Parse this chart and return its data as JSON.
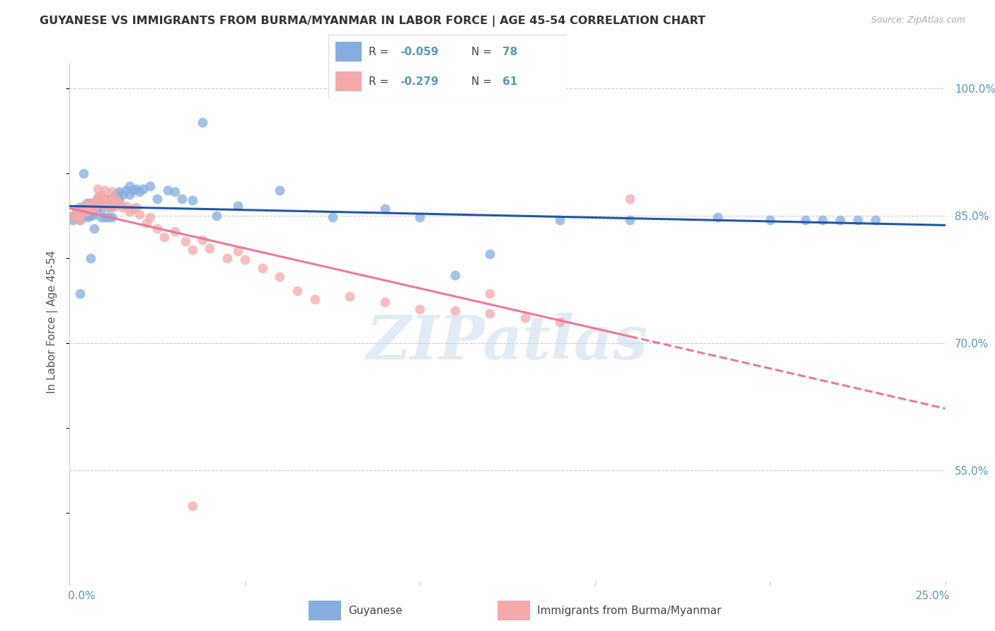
{
  "title": "GUYANESE VS IMMIGRANTS FROM BURMA/MYANMAR IN LABOR FORCE | AGE 45-54 CORRELATION CHART",
  "source": "Source: ZipAtlas.com",
  "ylabel": "In Labor Force | Age 45-54",
  "xaxis_label_left": "0.0%",
  "xaxis_label_right": "25.0%",
  "yaxis_ticks_vals": [
    1.0,
    0.85,
    0.7,
    0.55
  ],
  "yaxis_ticks_labels": [
    "100.0%",
    "85.0%",
    "70.0%",
    "55.0%"
  ],
  "xlim": [
    0.0,
    0.25
  ],
  "ylim": [
    0.42,
    1.03
  ],
  "legend_R_N": [
    {
      "R": "-0.059",
      "N": "78"
    },
    {
      "R": "-0.279",
      "N": "61"
    }
  ],
  "blue_color": "#85AEDE",
  "pink_color": "#F4AAAA",
  "trend_blue": "#2255AA",
  "trend_pink": "#EE7799",
  "title_color": "#333333",
  "axis_label_color": "#5599BB",
  "source_color": "#AAAAAA",
  "grid_color": "#CCCCCC",
  "watermark_color": "#C5D8EE",
  "blue_scatter_x": [
    0.001,
    0.001,
    0.002,
    0.002,
    0.002,
    0.003,
    0.003,
    0.003,
    0.003,
    0.004,
    0.004,
    0.004,
    0.005,
    0.005,
    0.005,
    0.005,
    0.006,
    0.006,
    0.006,
    0.006,
    0.007,
    0.007,
    0.007,
    0.008,
    0.008,
    0.008,
    0.009,
    0.009,
    0.01,
    0.01,
    0.011,
    0.011,
    0.012,
    0.012,
    0.013,
    0.013,
    0.014,
    0.014,
    0.015,
    0.016,
    0.017,
    0.017,
    0.018,
    0.019,
    0.02,
    0.021,
    0.023,
    0.025,
    0.028,
    0.03,
    0.032,
    0.035,
    0.038,
    0.042,
    0.048,
    0.06,
    0.075,
    0.09,
    0.1,
    0.11,
    0.12,
    0.14,
    0.16,
    0.185,
    0.2,
    0.21,
    0.215,
    0.22,
    0.225,
    0.23,
    0.003,
    0.004,
    0.006,
    0.007,
    0.009,
    0.01,
    0.011,
    0.012
  ],
  "blue_scatter_y": [
    0.845,
    0.85,
    0.848,
    0.852,
    0.855,
    0.845,
    0.85,
    0.855,
    0.86,
    0.85,
    0.855,
    0.858,
    0.848,
    0.852,
    0.86,
    0.865,
    0.85,
    0.855,
    0.86,
    0.865,
    0.852,
    0.858,
    0.862,
    0.86,
    0.865,
    0.87,
    0.858,
    0.862,
    0.862,
    0.87,
    0.86,
    0.865,
    0.862,
    0.87,
    0.865,
    0.875,
    0.868,
    0.878,
    0.875,
    0.88,
    0.875,
    0.885,
    0.88,
    0.882,
    0.878,
    0.882,
    0.885,
    0.87,
    0.88,
    0.878,
    0.87,
    0.868,
    0.96,
    0.85,
    0.862,
    0.88,
    0.848,
    0.858,
    0.848,
    0.78,
    0.805,
    0.845,
    0.845,
    0.848,
    0.845,
    0.845,
    0.845,
    0.845,
    0.845,
    0.845,
    0.758,
    0.9,
    0.8,
    0.835,
    0.848,
    0.848,
    0.848,
    0.848
  ],
  "pink_scatter_x": [
    0.001,
    0.002,
    0.002,
    0.003,
    0.003,
    0.004,
    0.004,
    0.005,
    0.005,
    0.006,
    0.006,
    0.007,
    0.007,
    0.008,
    0.008,
    0.009,
    0.009,
    0.01,
    0.01,
    0.011,
    0.011,
    0.012,
    0.012,
    0.013,
    0.013,
    0.014,
    0.015,
    0.016,
    0.017,
    0.018,
    0.019,
    0.02,
    0.022,
    0.023,
    0.025,
    0.027,
    0.03,
    0.033,
    0.035,
    0.038,
    0.04,
    0.045,
    0.048,
    0.05,
    0.055,
    0.06,
    0.065,
    0.07,
    0.08,
    0.09,
    0.1,
    0.11,
    0.12,
    0.13,
    0.14,
    0.16,
    0.12,
    0.008,
    0.01,
    0.012,
    0.035
  ],
  "pink_scatter_y": [
    0.85,
    0.848,
    0.858,
    0.845,
    0.852,
    0.855,
    0.862,
    0.855,
    0.862,
    0.858,
    0.865,
    0.858,
    0.865,
    0.865,
    0.872,
    0.875,
    0.868,
    0.87,
    0.862,
    0.87,
    0.862,
    0.868,
    0.86,
    0.87,
    0.862,
    0.865,
    0.86,
    0.862,
    0.855,
    0.858,
    0.86,
    0.852,
    0.842,
    0.848,
    0.835,
    0.825,
    0.832,
    0.82,
    0.81,
    0.822,
    0.812,
    0.8,
    0.808,
    0.798,
    0.788,
    0.778,
    0.762,
    0.752,
    0.755,
    0.748,
    0.74,
    0.738,
    0.735,
    0.73,
    0.725,
    0.87,
    0.758,
    0.882,
    0.88,
    0.878,
    0.508
  ],
  "pink_trend_solid_end": 0.16,
  "xticks": [
    0.0,
    0.05,
    0.1,
    0.15,
    0.2,
    0.25
  ]
}
